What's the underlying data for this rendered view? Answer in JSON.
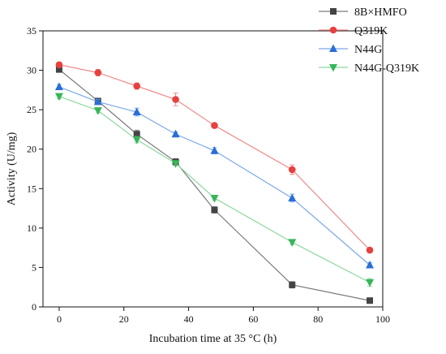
{
  "chart_data": {
    "type": "line",
    "title": "",
    "xlabel": "Incubation time at 35 °C (h)",
    "ylabel": "Activity (U/mg)",
    "xlim": [
      -5,
      100
    ],
    "ylim": [
      0,
      35
    ],
    "xticks": [
      0,
      20,
      40,
      60,
      80,
      100
    ],
    "yticks": [
      0,
      5,
      10,
      15,
      20,
      25,
      30,
      35
    ],
    "grid": false,
    "legend_position": "top-right",
    "x": [
      0,
      12,
      24,
      36,
      48,
      72,
      96
    ],
    "series": [
      {
        "name": "8B×HMFO",
        "marker": "square",
        "color": "#444444",
        "line_color": "#7a7a7a",
        "values": [
          30.1,
          26.1,
          21.9,
          18.4,
          12.3,
          2.8,
          0.8
        ],
        "errors": [
          0.3,
          0.3,
          0.5,
          0.4,
          0.4,
          0.4,
          0.3
        ]
      },
      {
        "name": "Q319K",
        "marker": "circle",
        "color": "#e8403f",
        "line_color": "#f08a8a",
        "values": [
          30.7,
          29.7,
          28.0,
          26.3,
          23.0,
          17.4,
          7.2
        ],
        "errors": [
          0.3,
          0.4,
          0.4,
          0.8,
          0.3,
          0.6,
          0.3
        ]
      },
      {
        "name": "N44G",
        "marker": "triangle-up",
        "color": "#2a6ed8",
        "line_color": "#7aa8e8",
        "values": [
          27.9,
          26.0,
          24.7,
          21.9,
          19.8,
          13.8,
          5.3
        ],
        "errors": [
          0.3,
          0.3,
          0.5,
          0.3,
          0.4,
          0.5,
          0.3
        ]
      },
      {
        "name": "N44G-Q319K",
        "marker": "triangle-down",
        "color": "#38b558",
        "line_color": "#8cd69e",
        "values": [
          26.7,
          24.9,
          21.2,
          18.2,
          13.8,
          8.2,
          3.1
        ],
        "errors": [
          0.3,
          0.3,
          0.4,
          0.3,
          0.3,
          0.3,
          0.5
        ]
      }
    ]
  }
}
